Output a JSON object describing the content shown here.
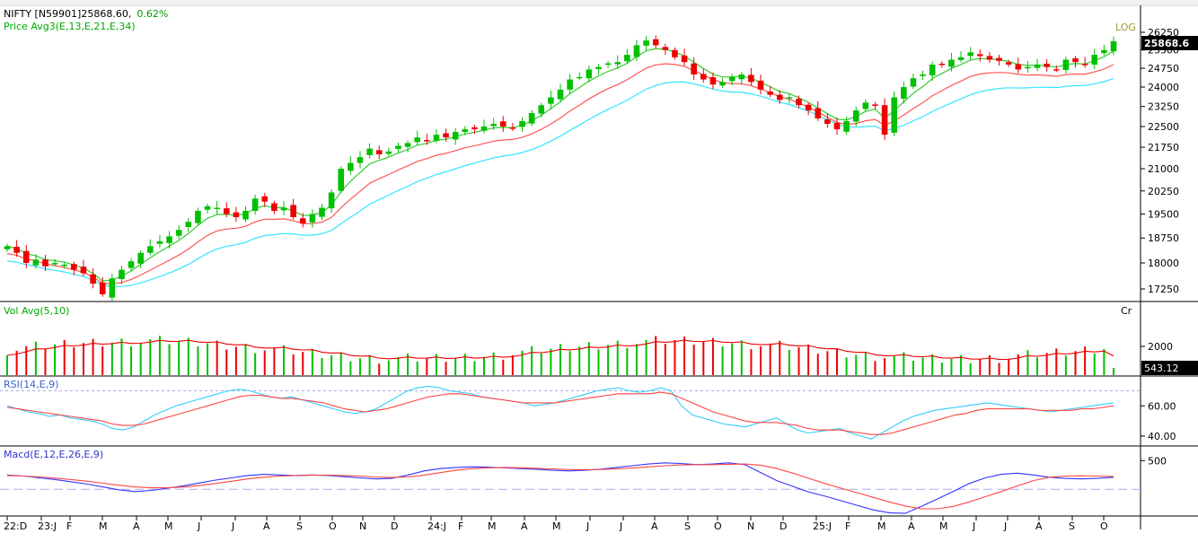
{
  "header": {
    "symbol": "NIFTY [N59901]",
    "price": "25868.60,",
    "change": "0.62%",
    "ma_label": "Price  Avg3(E,13,E,21,E,34)",
    "scale_label": "LOG",
    "last_price_badge": "25868.6"
  },
  "volume_panel": {
    "label": "Vol  Avg(5,10)",
    "unit": "Cr",
    "last_value_badge": "543.12"
  },
  "rsi_panel": {
    "label": "RSI(14,E,9)"
  },
  "macd_panel": {
    "label": "Macd(E,12,E,26,E,9)"
  },
  "colors": {
    "up": "#00c000",
    "down": "#ee0000",
    "ema13": "#33cc33",
    "ema21": "#ff5555",
    "ema34": "#33e5ff",
    "rsi": "#33ccff",
    "rsi_signal": "#ff4444",
    "macd": "#3333ff",
    "macd_signal": "#ff4444",
    "grid": "#aaaaaa"
  },
  "chart_data": [
    {
      "type": "candlestick",
      "title": "NIFTY [N59901]",
      "scale": "log",
      "ylim": [
        16800,
        26600
      ],
      "y_ticks": [
        "26250",
        "25500",
        "24750",
        "24000",
        "23250",
        "22500",
        "21750",
        "21000",
        "20250",
        "19500",
        "18750",
        "18000",
        "17250"
      ],
      "x_ticks": [
        "22:D",
        "23:J",
        "F",
        "M",
        "A",
        "M",
        "J",
        "J",
        "A",
        "S",
        "O",
        "N",
        "D",
        "24:J",
        "F",
        "M",
        "A",
        "M",
        "J",
        "J",
        "A",
        "S",
        "O",
        "N",
        "D",
        "25:J",
        "F",
        "M",
        "A",
        "M",
        "J",
        "J",
        "A",
        "S",
        "O"
      ],
      "approx_closes": [
        18500,
        18300,
        18000,
        18100,
        17900,
        18000,
        17950,
        17800,
        17700,
        17400,
        17100,
        17550,
        17800,
        18050,
        18300,
        18500,
        18650,
        18800,
        19000,
        19250,
        19600,
        19750,
        19700,
        19500,
        19400,
        19600,
        20000,
        19900,
        19600,
        19700,
        19400,
        19200,
        19500,
        19700,
        20200,
        21000,
        21200,
        21400,
        21700,
        21500,
        21600,
        21800,
        21900,
        22100,
        22000,
        22200,
        22100,
        22300,
        22400,
        22400,
        22500,
        22600,
        22500,
        22450,
        22700,
        23000,
        23300,
        23600,
        23900,
        24300,
        24400,
        24700,
        24800,
        24950,
        25000,
        25300,
        25700,
        25900,
        25700,
        25500,
        25200,
        25000,
        24500,
        24300,
        24100,
        24200,
        24400,
        24500,
        24200,
        23900,
        23700,
        23500,
        23600,
        23300,
        23100,
        22800,
        22600,
        22400,
        22700,
        23100,
        23400,
        23300,
        22200,
        23600,
        24000,
        24350,
        24500,
        24900,
        24900,
        25100,
        25200,
        25400,
        25250,
        25100,
        25050,
        24900,
        24700,
        24800,
        24900,
        24800,
        24700,
        25100,
        25000,
        24900,
        25300,
        25500,
        25868.6
      ],
      "series": [
        {
          "name": "Avg3 E13"
        },
        {
          "name": "Avg3 E21"
        },
        {
          "name": "Avg3 E34"
        }
      ]
    },
    {
      "type": "bar",
      "title": "Vol  Avg(5,10)",
      "unit": "Cr",
      "y_ticks": [
        "2000"
      ],
      "last_value": 543.12
    },
    {
      "type": "line",
      "title": "RSI(14,E,9)",
      "ylim": [
        34,
        78
      ],
      "y_ticks": [
        "60.00",
        "40.00"
      ],
      "overbought": 70,
      "rsi": [
        60,
        58,
        56,
        55,
        53,
        54,
        52,
        51,
        50,
        48,
        45,
        44,
        46,
        50,
        54,
        57,
        60,
        62,
        64,
        66,
        68,
        70,
        71,
        70,
        68,
        66,
        65,
        66,
        64,
        62,
        60,
        58,
        56,
        55,
        56,
        58,
        62,
        66,
        70,
        72,
        73,
        72,
        70,
        69,
        68,
        66,
        65,
        64,
        63,
        62,
        60,
        61,
        62,
        64,
        66,
        68,
        70,
        71,
        72,
        70,
        69,
        70,
        72,
        70,
        60,
        54,
        52,
        50,
        48,
        47,
        46,
        48,
        50,
        52,
        48,
        44,
        42,
        43,
        44,
        45,
        42,
        40,
        38,
        42,
        46,
        50,
        53,
        55,
        57,
        58,
        59,
        60,
        61,
        62,
        61,
        60,
        59,
        58,
        57,
        56,
        57,
        58,
        59,
        60,
        61,
        62
      ],
      "signal": [
        59,
        58,
        57,
        56,
        55,
        54,
        53,
        52,
        51,
        50,
        48,
        47,
        47,
        48,
        50,
        52,
        54,
        56,
        58,
        60,
        62,
        64,
        66,
        67,
        67,
        66,
        65,
        65,
        64,
        63,
        62,
        60,
        58,
        57,
        56,
        57,
        58,
        60,
        62,
        64,
        66,
        67,
        68,
        68,
        67,
        66,
        65,
        64,
        63,
        62,
        62,
        62,
        62,
        63,
        64,
        65,
        66,
        67,
        68,
        68,
        68,
        68,
        69,
        68,
        65,
        62,
        59,
        56,
        54,
        52,
        50,
        49,
        49,
        49,
        48,
        47,
        45,
        44,
        44,
        44,
        43,
        42,
        41,
        41,
        42,
        44,
        46,
        48,
        50,
        52,
        54,
        55,
        57,
        58,
        58,
        58,
        58,
        58,
        57,
        57,
        57,
        57,
        58,
        58,
        59,
        60
      ]
    },
    {
      "type": "line",
      "title": "Macd(E,12,E,26,E,9)",
      "y_ticks": [
        "500"
      ],
      "baseline": 0,
      "macd": [
        250,
        230,
        200,
        170,
        130,
        90,
        40,
        -10,
        -40,
        -20,
        20,
        60,
        110,
        160,
        200,
        240,
        260,
        250,
        240,
        250,
        240,
        220,
        200,
        180,
        190,
        250,
        320,
        360,
        380,
        390,
        385,
        375,
        360,
        350,
        330,
        320,
        330,
        350,
        380,
        410,
        440,
        460,
        450,
        430,
        440,
        460,
        430,
        290,
        150,
        50,
        -50,
        -120,
        -200,
        -280,
        -360,
        -410,
        -420,
        -300,
        -170,
        -40,
        100,
        200,
        260,
        280,
        250,
        210,
        190,
        180,
        190,
        210
      ],
      "signal": [
        240,
        230,
        215,
        195,
        170,
        140,
        105,
        70,
        40,
        25,
        25,
        40,
        65,
        100,
        140,
        180,
        210,
        230,
        240,
        245,
        245,
        240,
        230,
        215,
        205,
        215,
        245,
        290,
        330,
        360,
        375,
        380,
        375,
        365,
        355,
        345,
        340,
        345,
        355,
        370,
        390,
        410,
        425,
        430,
        430,
        435,
        440,
        420,
        360,
        280,
        190,
        100,
        20,
        -60,
        -140,
        -220,
        -290,
        -340,
        -340,
        -300,
        -220,
        -130,
        -40,
        60,
        150,
        210,
        230,
        235,
        230,
        225
      ]
    }
  ],
  "x_axis": {
    "labels": [
      "22:D",
      "23:J",
      "F",
      "M",
      "A",
      "M",
      "J",
      "J",
      "A",
      "S",
      "O",
      "N",
      "D",
      "24:J",
      "F",
      "M",
      "A",
      "M",
      "J",
      "J",
      "A",
      "S",
      "O",
      "N",
      "D",
      "25:J",
      "F",
      "M",
      "A",
      "M",
      "J",
      "J",
      "A",
      "S",
      "O"
    ]
  }
}
